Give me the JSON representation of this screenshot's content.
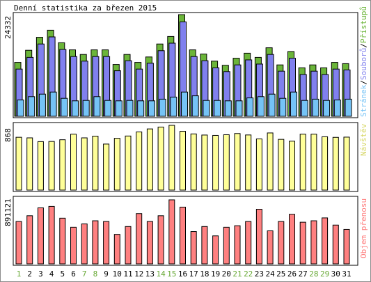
{
  "chart_data": [
    {
      "type": "bar",
      "title": "Denní statistika za březen 2015",
      "ylabel": "24332",
      "legend": [
        "Stránek",
        "/",
        "Souborů",
        "/",
        "Přístupů"
      ],
      "legend_position": "right",
      "categories": [
        "1",
        "2",
        "3",
        "4",
        "5",
        "6",
        "7",
        "8",
        "9",
        "10",
        "11",
        "12",
        "13",
        "14",
        "15",
        "16",
        "17",
        "18",
        "19",
        "20",
        "21",
        "22",
        "23",
        "24",
        "25",
        "26",
        "27",
        "28",
        "29",
        "30",
        "31"
      ],
      "ylim": [
        0,
        24332
      ],
      "series": [
        {
          "name": "Přístupů",
          "values": [
            12900,
            15800,
            18900,
            20600,
            17600,
            15900,
            14800,
            15900,
            15900,
            12400,
            14800,
            12900,
            14200,
            17300,
            19100,
            24332,
            15900,
            14900,
            13200,
            12200,
            13900,
            15100,
            14100,
            16400,
            12300,
            15500,
            11600,
            12300,
            11600,
            12900,
            12600
          ]
        },
        {
          "name": "Souborů",
          "values": [
            11300,
            14100,
            17300,
            19000,
            16000,
            14300,
            13200,
            14300,
            14300,
            10900,
            13300,
            11300,
            12700,
            15700,
            17500,
            22600,
            14300,
            13300,
            11600,
            10700,
            12300,
            13500,
            12500,
            14800,
            10800,
            13900,
            10000,
            10800,
            10000,
            11300,
            11100
          ]
        },
        {
          "name": "Stránek",
          "values": [
            3900,
            4700,
            5300,
            5800,
            4300,
            3700,
            3800,
            4700,
            3800,
            3700,
            3800,
            3700,
            3700,
            4100,
            4600,
            5800,
            4900,
            3800,
            3800,
            3700,
            3700,
            4400,
            4700,
            5300,
            4300,
            5800,
            3800,
            4100,
            3800,
            3900,
            4100
          ]
        }
      ],
      "colors": {
        "Přístupů": "#6bb539",
        "Souborů": "#8080ee",
        "Stránek": "#75c3f6"
      }
    },
    {
      "type": "bar",
      "ylabel": "868",
      "legend": [
        "Návštěv"
      ],
      "legend_position": "right",
      "categories": [
        "1",
        "2",
        "3",
        "4",
        "5",
        "6",
        "7",
        "8",
        "9",
        "10",
        "11",
        "12",
        "13",
        "14",
        "15",
        "16",
        "17",
        "18",
        "19",
        "20",
        "21",
        "22",
        "23",
        "24",
        "25",
        "26",
        "27",
        "28",
        "29",
        "30",
        "31"
      ],
      "ylim": [
        0,
        868
      ],
      "series": [
        {
          "name": "Návštěv",
          "values": [
            708,
            700,
            650,
            652,
            675,
            750,
            700,
            723,
            617,
            694,
            725,
            780,
            820,
            845,
            868,
            788,
            753,
            738,
            733,
            742,
            758,
            739,
            686,
            766,
            680,
            656,
            750,
            750,
            715,
            707,
            710
          ]
        }
      ],
      "colors": {
        "Návštěv": "#ffff99"
      }
    },
    {
      "type": "bar",
      "ylabel": "891121",
      "legend": [
        "Objem přenosu"
      ],
      "legend_position": "right",
      "categories": [
        "1",
        "2",
        "3",
        "4",
        "5",
        "6",
        "7",
        "8",
        "9",
        "10",
        "11",
        "12",
        "13",
        "14",
        "15",
        "16",
        "17",
        "18",
        "19",
        "20",
        "21",
        "22",
        "23",
        "24",
        "25",
        "26",
        "27",
        "28",
        "29",
        "30",
        "31"
      ],
      "ylim": [
        0,
        891121
      ],
      "series": [
        {
          "name": "Objem přenosu",
          "values": [
            590000,
            670000,
            780000,
            800000,
            636000,
            510000,
            556000,
            600000,
            590000,
            410000,
            520000,
            700000,
            590000,
            670000,
            891121,
            790000,
            450000,
            520000,
            390000,
            510000,
            531000,
            590000,
            760000,
            460000,
            590000,
            690000,
            580000,
            600000,
            640000,
            540000,
            480000
          ]
        }
      ],
      "colors": {
        "Objem přenosu": "#ff8080"
      }
    }
  ],
  "weekend_days": [
    "1",
    "7",
    "8",
    "14",
    "15",
    "21",
    "22",
    "28",
    "29"
  ],
  "colors": {
    "weekend_label": "#66a833",
    "weekday_label": "#000000",
    "panel_border": "#000000",
    "legend_slash": "#000000"
  }
}
